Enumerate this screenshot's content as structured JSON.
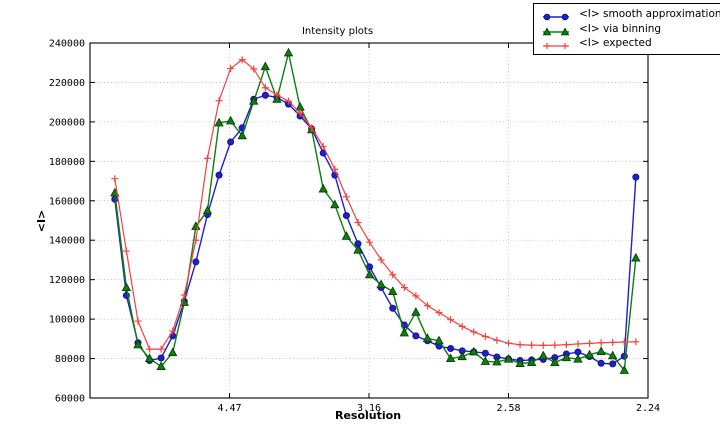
{
  "chart_data": {
    "type": "line",
    "title": "Intensity plots",
    "xlabel": "Resolution",
    "ylabel": "<I>",
    "grid": true,
    "legend_position": "upper right",
    "x_axis": {
      "scale": "reciprocal resolution squared (1/d^2)",
      "min": 0.0,
      "max": 0.2,
      "ticks": [
        {
          "value": 0.05,
          "label": "4.47"
        },
        {
          "value": 0.1,
          "label": "3.16"
        },
        {
          "value": 0.15,
          "label": "2.58"
        },
        {
          "value": 0.2,
          "label": "2.24"
        }
      ]
    },
    "y_axis": {
      "min": 60000,
      "max": 240000,
      "tick_step": 20000,
      "ticks": [
        240000,
        220000,
        200000,
        180000,
        160000,
        140000,
        120000,
        100000,
        80000,
        60000
      ]
    },
    "x": [
      0.0089,
      0.01305,
      0.0172,
      0.02135,
      0.0255,
      0.02965,
      0.0338,
      0.03795,
      0.0421,
      0.04625,
      0.0504,
      0.05455,
      0.0587,
      0.06285,
      0.067,
      0.07115,
      0.0753,
      0.07945,
      0.0836,
      0.08775,
      0.0919,
      0.09605,
      0.1002,
      0.10435,
      0.1085,
      0.11265,
      0.1168,
      0.12095,
      0.1251,
      0.12925,
      0.1334,
      0.13755,
      0.1417,
      0.14585,
      0.15,
      0.15415,
      0.1583,
      0.16245,
      0.1666,
      0.17075,
      0.1749,
      0.17905,
      0.1832,
      0.18735,
      0.1915,
      0.19565
    ],
    "series": [
      {
        "name": "<I> smooth approximation",
        "color": "#1f1fd0",
        "marker": "circle",
        "marker_edge": "#101077",
        "values": [
          160800,
          112000,
          88000,
          79000,
          80300,
          91500,
          109000,
          129000,
          153000,
          173000,
          189800,
          197000,
          211500,
          213500,
          212400,
          209000,
          203000,
          196500,
          184200,
          173000,
          152500,
          138200,
          126500,
          116000,
          105500,
          97000,
          91500,
          89000,
          86300,
          85100,
          83900,
          83400,
          82700,
          80800,
          79800,
          79000,
          79300,
          79600,
          80500,
          82300,
          83300,
          81000,
          77600,
          77300,
          81200,
          172000
        ]
      },
      {
        "name": "<I> via binning",
        "color": "#0f7d0f",
        "marker": "triangle_up",
        "marker_edge": "#043a04",
        "values": [
          164000,
          116000,
          87000,
          80000,
          76000,
          83000,
          108500,
          147000,
          155000,
          199500,
          200500,
          193000,
          210500,
          228000,
          211500,
          235000,
          207500,
          196000,
          166000,
          158000,
          142000,
          135000,
          122500,
          117500,
          114000,
          93000,
          103500,
          90200,
          89000,
          80000,
          81000,
          83400,
          78600,
          78300,
          79700,
          77500,
          78000,
          81400,
          78000,
          80500,
          79700,
          81900,
          83600,
          81400,
          74000,
          131000
        ]
      },
      {
        "name": "<I> expected",
        "color": "#f74040",
        "marker": "plus",
        "marker_edge": "#f74040",
        "values": [
          171200,
          134500,
          99000,
          84800,
          84800,
          94000,
          112200,
          140000,
          181500,
          210700,
          227100,
          231500,
          226800,
          217300,
          213700,
          210500,
          204500,
          197000,
          187500,
          176000,
          162000,
          149000,
          139000,
          130000,
          122500,
          116000,
          111800,
          106800,
          103300,
          99700,
          96300,
          93500,
          91200,
          89300,
          87800,
          87000,
          86800,
          86700,
          86800,
          87000,
          87400,
          87700,
          88000,
          88200,
          88400,
          88500
        ]
      }
    ],
    "style": {
      "grid_color": "#b8b8b8",
      "spine_color": "#000000",
      "background": "#ffffff"
    }
  }
}
